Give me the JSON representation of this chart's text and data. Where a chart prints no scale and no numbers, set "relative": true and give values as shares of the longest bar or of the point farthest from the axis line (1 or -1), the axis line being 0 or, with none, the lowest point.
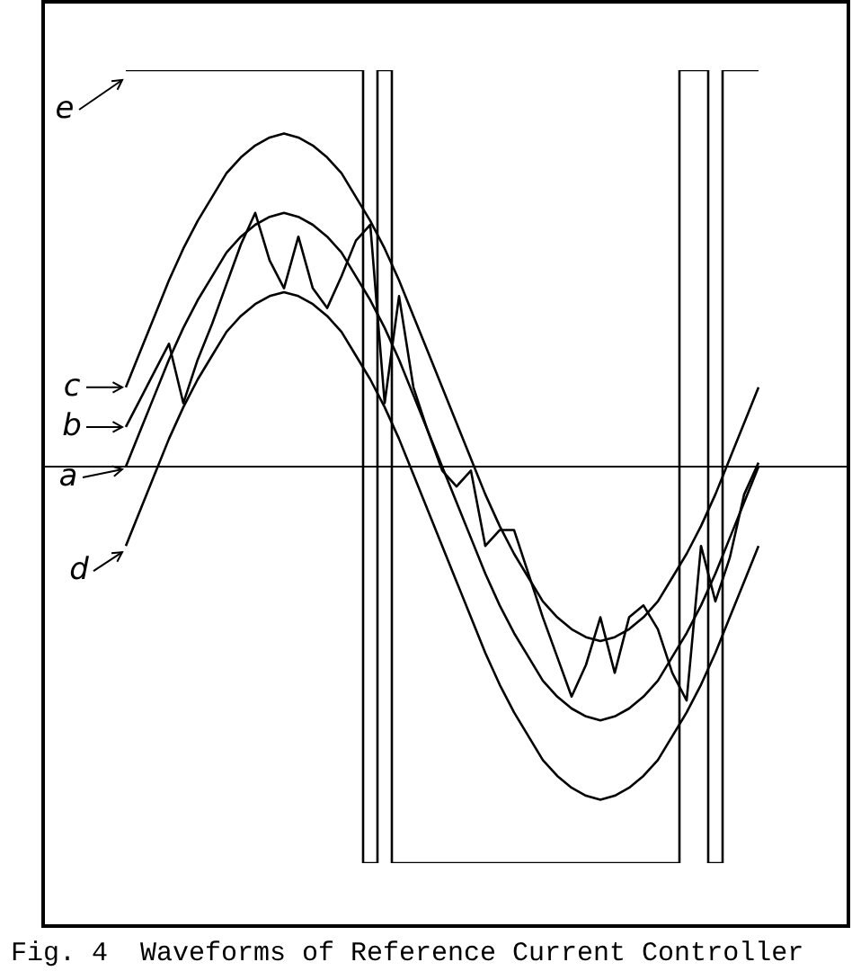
{
  "chart_data": {
    "type": "line",
    "relative": true,
    "legend": "left",
    "tick_labels": false,
    "marker": "none",
    "line_style": "solid",
    "categories": [
      null,
      null,
      null,
      null,
      null,
      null,
      null,
      null,
      null,
      null,
      null,
      null,
      null,
      null,
      null,
      null,
      null,
      null,
      null,
      null,
      null,
      null,
      null,
      null,
      null,
      null,
      null,
      null,
      null,
      null,
      null,
      null,
      null,
      null,
      null,
      null,
      null,
      null,
      null,
      null,
      null,
      null,
      null,
      null,
      null
    ],
    "series": [
      {
        "name": "e",
        "type": "step",
        "color": "#000000",
        "values": [
          1,
          1,
          1,
          1,
          1,
          1,
          1,
          1,
          1,
          1,
          1,
          1,
          1,
          1,
          1,
          1,
          1,
          -1,
          1,
          -1,
          -1,
          -1,
          -1,
          -1,
          -1,
          -1,
          -1,
          -1,
          -1,
          -1,
          -1,
          -1,
          -1,
          -1,
          -1,
          -1,
          -1,
          -1,
          -1,
          1,
          1,
          -1,
          1,
          1,
          1
        ]
      },
      {
        "name": "c",
        "color": "#000000",
        "values": [
          0.2,
          0.29,
          0.38,
          0.47,
          0.55,
          0.62,
          0.68,
          0.74,
          0.78,
          0.81,
          0.83,
          0.84,
          0.83,
          0.81,
          0.78,
          0.74,
          0.68,
          0.62,
          0.55,
          0.47,
          0.38,
          0.29,
          0.2,
          0.11,
          0.02,
          -0.07,
          -0.15,
          -0.22,
          -0.28,
          -0.34,
          -0.38,
          -0.41,
          -0.43,
          -0.44,
          -0.43,
          -0.41,
          -0.38,
          -0.34,
          -0.28,
          -0.22,
          -0.15,
          -0.07,
          0.02,
          0.11,
          0.2
        ]
      },
      {
        "name": "b",
        "color": "#000000",
        "values": [
          0.1,
          0.17,
          0.24,
          0.31,
          0.16,
          0.27,
          0.36,
          0.46,
          0.56,
          0.64,
          0.52,
          0.45,
          0.58,
          0.45,
          0.4,
          0.48,
          0.57,
          0.61,
          0.16,
          0.43,
          0.2,
          0.09,
          -0.01,
          -0.05,
          -0.01,
          -0.2,
          -0.16,
          -0.16,
          -0.27,
          -0.38,
          -0.48,
          -0.58,
          -0.5,
          -0.38,
          -0.52,
          -0.38,
          -0.35,
          -0.41,
          -0.52,
          -0.59,
          -0.2,
          -0.34,
          -0.23,
          -0.07,
          0.01
        ]
      },
      {
        "name": "a",
        "color": "#000000",
        "values": [
          0,
          0.09,
          0.18,
          0.27,
          0.35,
          0.42,
          0.48,
          0.54,
          0.58,
          0.61,
          0.63,
          0.64,
          0.63,
          0.61,
          0.58,
          0.54,
          0.48,
          0.42,
          0.35,
          0.27,
          0.18,
          0.09,
          0,
          -0.09,
          -0.18,
          -0.27,
          -0.35,
          -0.42,
          -0.48,
          -0.54,
          -0.58,
          -0.61,
          -0.63,
          -0.64,
          -0.63,
          -0.61,
          -0.58,
          -0.54,
          -0.48,
          -0.42,
          -0.35,
          -0.27,
          -0.18,
          -0.09,
          0
        ]
      },
      {
        "name": "d",
        "color": "#000000",
        "values": [
          -0.2,
          -0.11,
          -0.02,
          0.07,
          0.15,
          0.22,
          0.28,
          0.34,
          0.38,
          0.41,
          0.43,
          0.44,
          0.43,
          0.41,
          0.38,
          0.34,
          0.28,
          0.22,
          0.15,
          0.07,
          -0.02,
          -0.11,
          -0.2,
          -0.29,
          -0.38,
          -0.47,
          -0.55,
          -0.62,
          -0.68,
          -0.74,
          -0.78,
          -0.81,
          -0.83,
          -0.84,
          -0.83,
          -0.81,
          -0.78,
          -0.74,
          -0.68,
          -0.62,
          -0.55,
          -0.47,
          -0.38,
          -0.29,
          -0.2
        ]
      }
    ],
    "annotations": [
      "Fig. 4  Waveforms of Reference Current Controller"
    ]
  }
}
